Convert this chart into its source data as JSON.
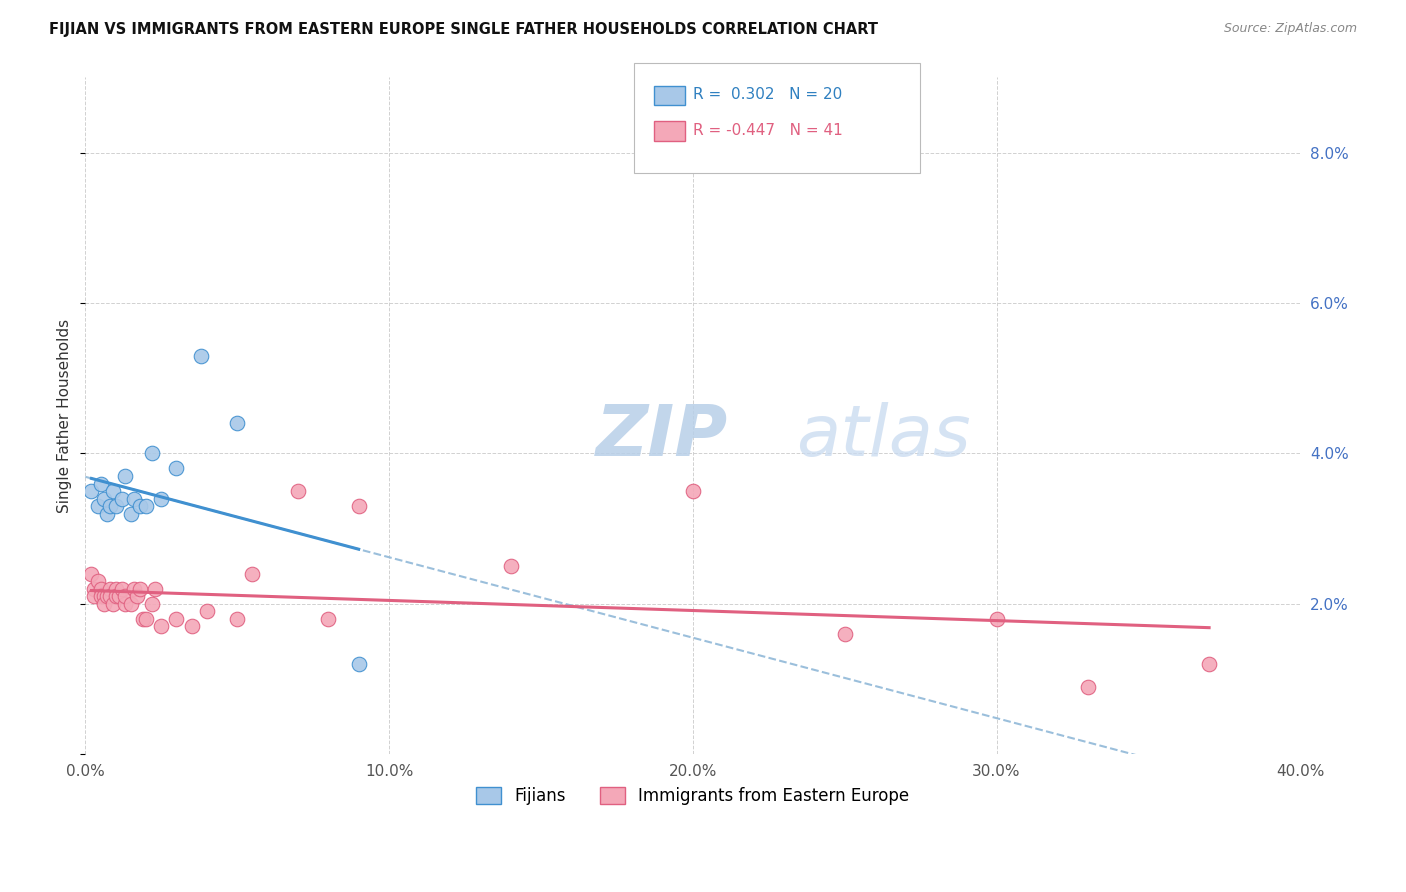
{
  "title": "FIJIAN VS IMMIGRANTS FROM EASTERN EUROPE SINGLE FATHER HOUSEHOLDS CORRELATION CHART",
  "source": "Source: ZipAtlas.com",
  "ylabel": "Single Father Households",
  "xlim": [
    0,
    0.4
  ],
  "ylim": [
    0,
    0.09
  ],
  "xticks": [
    0.0,
    0.1,
    0.2,
    0.3,
    0.4
  ],
  "yticks": [
    0.0,
    0.02,
    0.04,
    0.06,
    0.08
  ],
  "yticklabels_right": [
    "",
    "2.0%",
    "4.0%",
    "6.0%",
    "8.0%"
  ],
  "legend_labels": [
    "Fijians",
    "Immigrants from Eastern Europe"
  ],
  "fijian_color": "#a8c8e8",
  "eastern_europe_color": "#f4a8b8",
  "fijian_line_color": "#4090d0",
  "eastern_europe_line_color": "#e06080",
  "fijian_dashed_color": "#90b8d8",
  "background_color": "#ffffff",
  "grid_color": "#cccccc",
  "fijian_x": [
    0.002,
    0.004,
    0.005,
    0.006,
    0.007,
    0.008,
    0.009,
    0.01,
    0.012,
    0.013,
    0.015,
    0.016,
    0.018,
    0.02,
    0.022,
    0.025,
    0.03,
    0.038,
    0.05,
    0.09
  ],
  "fijian_y": [
    0.035,
    0.033,
    0.036,
    0.034,
    0.032,
    0.033,
    0.035,
    0.033,
    0.034,
    0.037,
    0.032,
    0.034,
    0.033,
    0.033,
    0.04,
    0.034,
    0.038,
    0.053,
    0.044,
    0.012
  ],
  "eastern_europe_x": [
    0.002,
    0.003,
    0.003,
    0.004,
    0.005,
    0.005,
    0.006,
    0.006,
    0.007,
    0.008,
    0.008,
    0.009,
    0.01,
    0.01,
    0.011,
    0.012,
    0.013,
    0.013,
    0.015,
    0.016,
    0.017,
    0.018,
    0.019,
    0.02,
    0.022,
    0.023,
    0.025,
    0.03,
    0.035,
    0.04,
    0.05,
    0.055,
    0.07,
    0.08,
    0.09,
    0.14,
    0.2,
    0.25,
    0.3,
    0.33,
    0.37
  ],
  "eastern_europe_y": [
    0.024,
    0.022,
    0.021,
    0.023,
    0.022,
    0.021,
    0.021,
    0.02,
    0.021,
    0.022,
    0.021,
    0.02,
    0.022,
    0.021,
    0.021,
    0.022,
    0.02,
    0.021,
    0.02,
    0.022,
    0.021,
    0.022,
    0.018,
    0.018,
    0.02,
    0.022,
    0.017,
    0.018,
    0.017,
    0.019,
    0.018,
    0.024,
    0.035,
    0.018,
    0.033,
    0.025,
    0.035,
    0.016,
    0.018,
    0.009,
    0.012
  ]
}
